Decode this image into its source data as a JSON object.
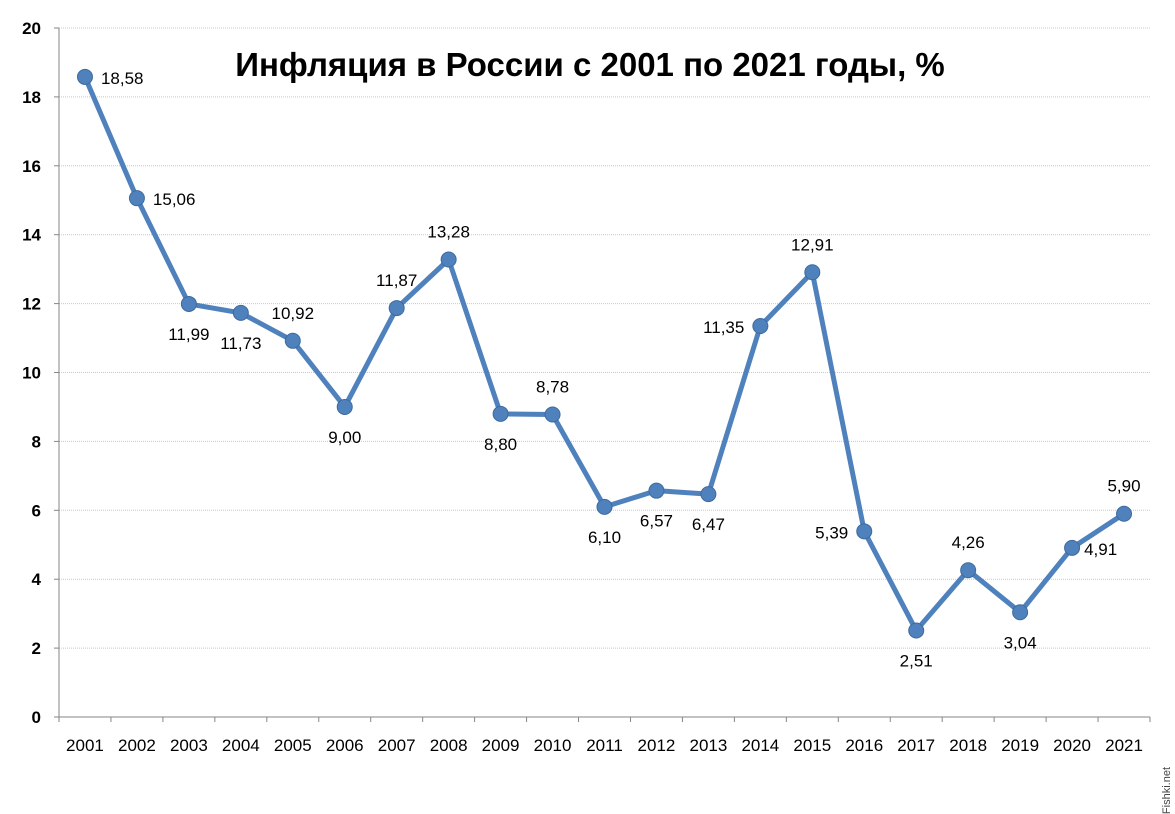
{
  "chart_data": {
    "type": "line",
    "title": "Инфляция в России с 2001 по 2021 годы, %",
    "xlabel": "",
    "ylabel": "",
    "categories": [
      "2001",
      "2002",
      "2003",
      "2004",
      "2005",
      "2006",
      "2007",
      "2008",
      "2009",
      "2010",
      "2011",
      "2012",
      "2013",
      "2014",
      "2015",
      "2016",
      "2017",
      "2018",
      "2019",
      "2020",
      "2021"
    ],
    "series": [
      {
        "values": [
          18.58,
          15.06,
          11.99,
          11.73,
          10.92,
          9.0,
          11.87,
          13.28,
          8.8,
          8.78,
          6.1,
          6.57,
          6.47,
          11.35,
          12.91,
          5.39,
          2.51,
          4.26,
          3.04,
          4.91,
          5.9
        ],
        "data_labels": [
          "18,58",
          "15,06",
          "11,99",
          "11,73",
          "10,92",
          "9,00",
          "11,87",
          "13,28",
          "8,80",
          "8,78",
          "6,10",
          "6,57",
          "6,47",
          "11,35",
          "12,91",
          "5,39",
          "2,51",
          "4,26",
          "3,04",
          "4,91",
          "5,90"
        ],
        "color": "#4f81bd"
      }
    ],
    "ylim": [
      0,
      20
    ],
    "yticks": [
      0,
      2,
      4,
      6,
      8,
      10,
      12,
      14,
      16,
      18,
      20
    ],
    "grid": true,
    "legend": "none"
  },
  "watermark": "Fishki.net"
}
